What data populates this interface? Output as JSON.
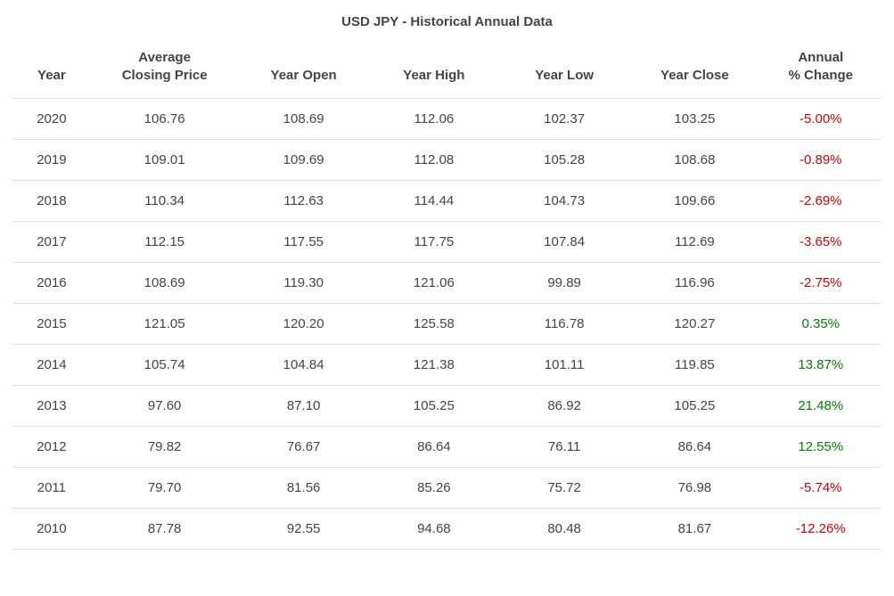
{
  "title": "USD JPY - Historical Annual Data",
  "table": {
    "type": "table",
    "background_color": "#ffffff",
    "border_color": "#e0e0e0",
    "text_color": "#444444",
    "positive_color": "#008000",
    "negative_color": "#d40000",
    "header_fontsize": 15,
    "cell_fontsize": 15,
    "columns": [
      {
        "key": "year",
        "label": "Year",
        "width_pct": 9,
        "align": "center"
      },
      {
        "key": "avg_close",
        "label": "Average\nClosing Price",
        "width_pct": 17,
        "align": "center"
      },
      {
        "key": "year_open",
        "label": "Year Open",
        "width_pct": 15,
        "align": "center"
      },
      {
        "key": "year_high",
        "label": "Year High",
        "width_pct": 15,
        "align": "center"
      },
      {
        "key": "year_low",
        "label": "Year Low",
        "width_pct": 15,
        "align": "center"
      },
      {
        "key": "year_close",
        "label": "Year Close",
        "width_pct": 15,
        "align": "center"
      },
      {
        "key": "annual_pct_change",
        "label": "Annual\n% Change",
        "width_pct": 14,
        "align": "center"
      }
    ],
    "rows": [
      {
        "year": "2020",
        "avg_close": "106.76",
        "year_open": "108.69",
        "year_high": "112.06",
        "year_low": "102.37",
        "year_close": "103.25",
        "annual_pct_change": "-5.00%",
        "change_sign": "neg"
      },
      {
        "year": "2019",
        "avg_close": "109.01",
        "year_open": "109.69",
        "year_high": "112.08",
        "year_low": "105.28",
        "year_close": "108.68",
        "annual_pct_change": "-0.89%",
        "change_sign": "neg"
      },
      {
        "year": "2018",
        "avg_close": "110.34",
        "year_open": "112.63",
        "year_high": "114.44",
        "year_low": "104.73",
        "year_close": "109.66",
        "annual_pct_change": "-2.69%",
        "change_sign": "neg"
      },
      {
        "year": "2017",
        "avg_close": "112.15",
        "year_open": "117.55",
        "year_high": "117.75",
        "year_low": "107.84",
        "year_close": "112.69",
        "annual_pct_change": "-3.65%",
        "change_sign": "neg"
      },
      {
        "year": "2016",
        "avg_close": "108.69",
        "year_open": "119.30",
        "year_high": "121.06",
        "year_low": "99.89",
        "year_close": "116.96",
        "annual_pct_change": "-2.75%",
        "change_sign": "neg"
      },
      {
        "year": "2015",
        "avg_close": "121.05",
        "year_open": "120.20",
        "year_high": "125.58",
        "year_low": "116.78",
        "year_close": "120.27",
        "annual_pct_change": "0.35%",
        "change_sign": "pos"
      },
      {
        "year": "2014",
        "avg_close": "105.74",
        "year_open": "104.84",
        "year_high": "121.38",
        "year_low": "101.11",
        "year_close": "119.85",
        "annual_pct_change": "13.87%",
        "change_sign": "pos"
      },
      {
        "year": "2013",
        "avg_close": "97.60",
        "year_open": "87.10",
        "year_high": "105.25",
        "year_low": "86.92",
        "year_close": "105.25",
        "annual_pct_change": "21.48%",
        "change_sign": "pos"
      },
      {
        "year": "2012",
        "avg_close": "79.82",
        "year_open": "76.67",
        "year_high": "86.64",
        "year_low": "76.11",
        "year_close": "86.64",
        "annual_pct_change": "12.55%",
        "change_sign": "pos"
      },
      {
        "year": "2011",
        "avg_close": "79.70",
        "year_open": "81.56",
        "year_high": "85.26",
        "year_low": "75.72",
        "year_close": "76.98",
        "annual_pct_change": "-5.74%",
        "change_sign": "neg"
      },
      {
        "year": "2010",
        "avg_close": "87.78",
        "year_open": "92.55",
        "year_high": "94.68",
        "year_low": "80.48",
        "year_close": "81.67",
        "annual_pct_change": "-12.26%",
        "change_sign": "neg"
      }
    ]
  }
}
